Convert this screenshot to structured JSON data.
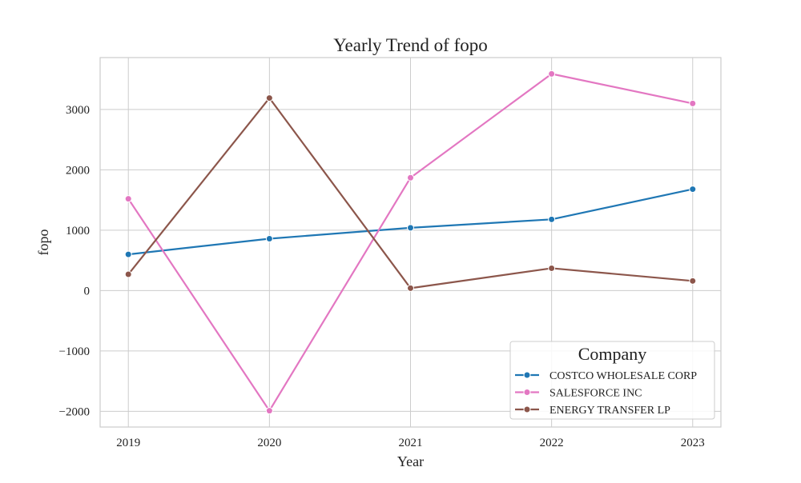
{
  "chart_data": {
    "type": "line",
    "title": "Yearly Trend of fopo",
    "xlabel": "Year",
    "ylabel": "fopo",
    "x": [
      2019,
      2020,
      2021,
      2022,
      2023
    ],
    "x_tick_labels": [
      "2019",
      "2020",
      "2021",
      "2022",
      "2023"
    ],
    "y_ticks": [
      -2000,
      -1000,
      0,
      1000,
      2000,
      3000
    ],
    "y_tick_labels": [
      "−2000",
      "−1000",
      "0",
      "1000",
      "2000",
      "3000"
    ],
    "xlim": [
      2018.8,
      2023.2
    ],
    "ylim": [
      -2260,
      3860
    ],
    "grid": true,
    "legend": {
      "title": "Company",
      "placement": "lower right"
    },
    "series": [
      {
        "name": "COSTCO WHOLESALE CORP",
        "color": "#1f77b4",
        "values": [
          600,
          860,
          1040,
          1180,
          1680
        ]
      },
      {
        "name": "SALESFORCE INC",
        "color": "#e377c2",
        "values": [
          1520,
          -1990,
          1870,
          3590,
          3100
        ]
      },
      {
        "name": "ENERGY TRANSFER LP",
        "color": "#8c564b",
        "values": [
          270,
          3190,
          40,
          370,
          160
        ]
      }
    ]
  }
}
